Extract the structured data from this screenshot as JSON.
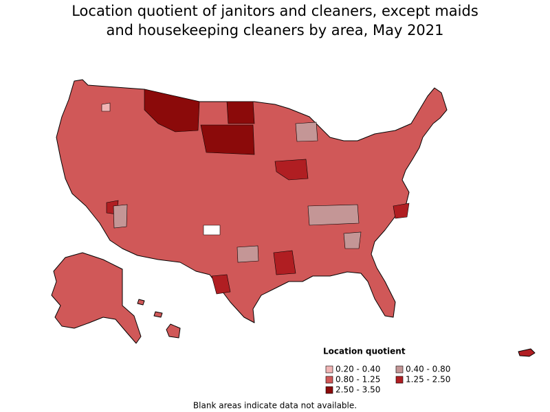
{
  "title_lines": [
    "Location quotient of janitors and cleaners, except maids",
    "and housekeeping cleaners by area, May 2021"
  ],
  "legend": {
    "title": "Location quotient",
    "items": [
      {
        "label": "0.20 - 0.40",
        "color": "#f0b4b4"
      },
      {
        "label": "0.40 - 0.80",
        "color": "#c49696"
      },
      {
        "label": "0.80 - 1.25",
        "color": "#d05858"
      },
      {
        "label": "1.25 - 2.50",
        "color": "#b01e22"
      },
      {
        "label": "2.50 - 3.50",
        "color": "#8b0a0a"
      }
    ]
  },
  "note": "Blank areas indicate data not available."
}
